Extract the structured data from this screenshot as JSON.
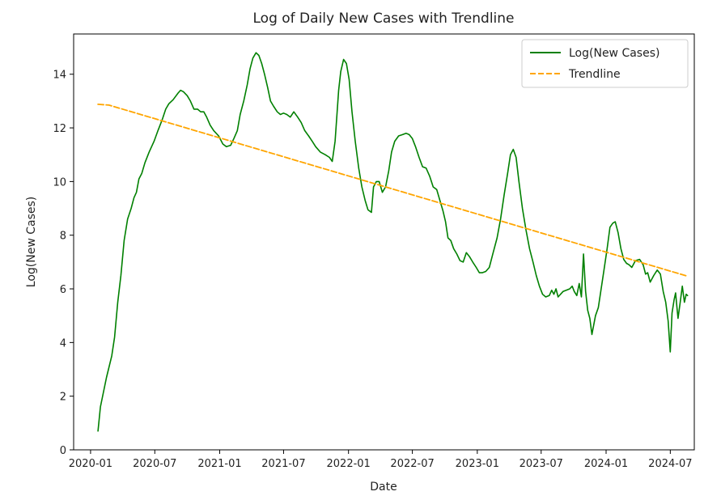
{
  "chart_data": {
    "type": "line",
    "title": "Log of Daily New Cases with Trendline",
    "xlabel": "Date",
    "ylabel": "Log(New Cases)",
    "xlim": [
      "2019-11-14",
      "2024-09-07"
    ],
    "ylim": [
      0,
      15.5
    ],
    "x_ticks": [
      "2020-01",
      "2020-07",
      "2021-01",
      "2021-07",
      "2022-01",
      "2022-07",
      "2023-01",
      "2023-07",
      "2024-01",
      "2024-07"
    ],
    "y_ticks": [
      0,
      2,
      4,
      6,
      8,
      10,
      12,
      14
    ],
    "grid": false,
    "legend": "upper right",
    "series": [
      {
        "name": "Log(New Cases)",
        "color": "#008000",
        "style": "solid",
        "points": [
          [
            "2020-01-22",
            0.7
          ],
          [
            "2020-01-29",
            1.6
          ],
          [
            "2020-02-15",
            2.7
          ],
          [
            "2020-03-01",
            3.5
          ],
          [
            "2020-03-09",
            4.2
          ],
          [
            "2020-03-18",
            5.5
          ],
          [
            "2020-03-27",
            6.5
          ],
          [
            "2020-04-05",
            7.8
          ],
          [
            "2020-04-15",
            8.6
          ],
          [
            "2020-04-25",
            9.0
          ],
          [
            "2020-05-03",
            9.4
          ],
          [
            "2020-05-10",
            9.6
          ],
          [
            "2020-05-17",
            10.1
          ],
          [
            "2020-05-25",
            10.3
          ],
          [
            "2020-06-03",
            10.7
          ],
          [
            "2020-06-15",
            11.1
          ],
          [
            "2020-06-29",
            11.5
          ],
          [
            "2020-07-10",
            11.9
          ],
          [
            "2020-07-22",
            12.3
          ],
          [
            "2020-08-01",
            12.7
          ],
          [
            "2020-08-10",
            12.9
          ],
          [
            "2020-08-22",
            13.05
          ],
          [
            "2020-09-05",
            13.3
          ],
          [
            "2020-09-12",
            13.4
          ],
          [
            "2020-09-20",
            13.35
          ],
          [
            "2020-10-01",
            13.2
          ],
          [
            "2020-10-10",
            13.0
          ],
          [
            "2020-10-20",
            12.7
          ],
          [
            "2020-10-30",
            12.7
          ],
          [
            "2020-11-08",
            12.6
          ],
          [
            "2020-11-17",
            12.6
          ],
          [
            "2020-11-25",
            12.4
          ],
          [
            "2020-12-05",
            12.1
          ],
          [
            "2020-12-15",
            11.9
          ],
          [
            "2020-12-29",
            11.7
          ],
          [
            "2021-01-10",
            11.4
          ],
          [
            "2021-01-20",
            11.3
          ],
          [
            "2021-02-01",
            11.35
          ],
          [
            "2021-02-10",
            11.6
          ],
          [
            "2021-02-20",
            11.9
          ],
          [
            "2021-02-28",
            12.5
          ],
          [
            "2021-03-10",
            13.0
          ],
          [
            "2021-03-20",
            13.6
          ],
          [
            "2021-03-28",
            14.2
          ],
          [
            "2021-04-05",
            14.6
          ],
          [
            "2021-04-14",
            14.8
          ],
          [
            "2021-04-22",
            14.7
          ],
          [
            "2021-04-30",
            14.4
          ],
          [
            "2021-05-08",
            14.0
          ],
          [
            "2021-05-17",
            13.5
          ],
          [
            "2021-05-25",
            13.0
          ],
          [
            "2021-06-03",
            12.8
          ],
          [
            "2021-06-13",
            12.6
          ],
          [
            "2021-06-22",
            12.5
          ],
          [
            "2021-07-01",
            12.55
          ],
          [
            "2021-07-10",
            12.5
          ],
          [
            "2021-07-20",
            12.4
          ],
          [
            "2021-07-30",
            12.6
          ],
          [
            "2021-08-10",
            12.4
          ],
          [
            "2021-08-20",
            12.2
          ],
          [
            "2021-08-30",
            11.9
          ],
          [
            "2021-09-10",
            11.7
          ],
          [
            "2021-09-20",
            11.5
          ],
          [
            "2021-09-30",
            11.3
          ],
          [
            "2021-10-13",
            11.1
          ],
          [
            "2021-10-27",
            11.0
          ],
          [
            "2021-11-08",
            10.9
          ],
          [
            "2021-11-16",
            10.75
          ],
          [
            "2021-11-24",
            11.5
          ],
          [
            "2021-12-04",
            13.4
          ],
          [
            "2021-12-10",
            14.1
          ],
          [
            "2021-12-18",
            14.55
          ],
          [
            "2021-12-26",
            14.4
          ],
          [
            "2022-01-03",
            13.8
          ],
          [
            "2022-01-11",
            12.6
          ],
          [
            "2022-01-20",
            11.5
          ],
          [
            "2022-01-30",
            10.5
          ],
          [
            "2022-02-08",
            9.8
          ],
          [
            "2022-02-17",
            9.3
          ],
          [
            "2022-02-25",
            8.95
          ],
          [
            "2022-03-07",
            8.85
          ],
          [
            "2022-03-13",
            9.8
          ],
          [
            "2022-03-21",
            10.0
          ],
          [
            "2022-03-29",
            10.0
          ],
          [
            "2022-04-07",
            9.6
          ],
          [
            "2022-04-16",
            9.8
          ],
          [
            "2022-04-25",
            10.4
          ],
          [
            "2022-05-03",
            11.1
          ],
          [
            "2022-05-12",
            11.5
          ],
          [
            "2022-05-23",
            11.7
          ],
          [
            "2022-06-03",
            11.75
          ],
          [
            "2022-06-13",
            11.8
          ],
          [
            "2022-06-22",
            11.75
          ],
          [
            "2022-07-01",
            11.6
          ],
          [
            "2022-07-10",
            11.3
          ],
          [
            "2022-07-20",
            10.9
          ],
          [
            "2022-07-30",
            10.55
          ],
          [
            "2022-08-09",
            10.5
          ],
          [
            "2022-08-19",
            10.2
          ],
          [
            "2022-08-29",
            9.8
          ],
          [
            "2022-09-08",
            9.7
          ],
          [
            "2022-09-17",
            9.3
          ],
          [
            "2022-09-26",
            8.9
          ],
          [
            "2022-10-03",
            8.5
          ],
          [
            "2022-10-10",
            7.9
          ],
          [
            "2022-10-18",
            7.8
          ],
          [
            "2022-10-26",
            7.5
          ],
          [
            "2022-11-04",
            7.3
          ],
          [
            "2022-11-13",
            7.05
          ],
          [
            "2022-11-22",
            7.0
          ],
          [
            "2022-12-01",
            7.35
          ],
          [
            "2022-12-10",
            7.2
          ],
          [
            "2022-12-19",
            7.0
          ],
          [
            "2022-12-29",
            6.8
          ],
          [
            "2023-01-07",
            6.6
          ],
          [
            "2023-01-15",
            6.6
          ],
          [
            "2023-01-25",
            6.65
          ],
          [
            "2023-02-04",
            6.8
          ],
          [
            "2023-02-14",
            7.3
          ],
          [
            "2023-02-26",
            7.9
          ],
          [
            "2023-03-08",
            8.6
          ],
          [
            "2023-03-18",
            9.5
          ],
          [
            "2023-03-28",
            10.3
          ],
          [
            "2023-04-05",
            11.0
          ],
          [
            "2023-04-13",
            11.2
          ],
          [
            "2023-04-21",
            10.9
          ],
          [
            "2023-04-29",
            10.0
          ],
          [
            "2023-05-09",
            9.0
          ],
          [
            "2023-05-19",
            8.2
          ],
          [
            "2023-05-29",
            7.5
          ],
          [
            "2023-06-08",
            7.0
          ],
          [
            "2023-06-17",
            6.5
          ],
          [
            "2023-06-26",
            6.1
          ],
          [
            "2023-07-05",
            5.8
          ],
          [
            "2023-07-14",
            5.7
          ],
          [
            "2023-07-24",
            5.75
          ],
          [
            "2023-07-31",
            5.95
          ],
          [
            "2023-08-06",
            5.8
          ],
          [
            "2023-08-12",
            6.0
          ],
          [
            "2023-08-18",
            5.7
          ],
          [
            "2023-08-25",
            5.8
          ],
          [
            "2023-09-01",
            5.9
          ],
          [
            "2023-09-10",
            5.95
          ],
          [
            "2023-09-20",
            6.0
          ],
          [
            "2023-09-27",
            6.1
          ],
          [
            "2023-10-03",
            5.9
          ],
          [
            "2023-10-10",
            5.75
          ],
          [
            "2023-10-17",
            6.2
          ],
          [
            "2023-10-23",
            5.7
          ],
          [
            "2023-10-29",
            7.3
          ],
          [
            "2023-11-04",
            5.9
          ],
          [
            "2023-11-10",
            5.2
          ],
          [
            "2023-11-16",
            4.9
          ],
          [
            "2023-11-22",
            4.3
          ],
          [
            "2023-12-02",
            5.0
          ],
          [
            "2023-12-10",
            5.3
          ],
          [
            "2023-12-18",
            6.0
          ],
          [
            "2023-12-26",
            6.7
          ],
          [
            "2024-01-04",
            7.5
          ],
          [
            "2024-01-12",
            8.3
          ],
          [
            "2024-01-20",
            8.45
          ],
          [
            "2024-01-27",
            8.5
          ],
          [
            "2024-02-04",
            8.1
          ],
          [
            "2024-02-12",
            7.5
          ],
          [
            "2024-02-20",
            7.1
          ],
          [
            "2024-02-28",
            6.95
          ],
          [
            "2024-03-06",
            6.9
          ],
          [
            "2024-03-14",
            6.8
          ],
          [
            "2024-03-24",
            7.05
          ],
          [
            "2024-04-05",
            7.1
          ],
          [
            "2024-04-15",
            6.9
          ],
          [
            "2024-04-22",
            6.55
          ],
          [
            "2024-04-28",
            6.6
          ],
          [
            "2024-05-05",
            6.25
          ],
          [
            "2024-05-15",
            6.5
          ],
          [
            "2024-05-25",
            6.7
          ],
          [
            "2024-06-03",
            6.55
          ],
          [
            "2024-06-11",
            5.9
          ],
          [
            "2024-06-18",
            5.5
          ],
          [
            "2024-06-25",
            4.8
          ],
          [
            "2024-07-01",
            3.65
          ],
          [
            "2024-07-06",
            5.1
          ],
          [
            "2024-07-12",
            5.6
          ],
          [
            "2024-07-16",
            5.85
          ],
          [
            "2024-07-20",
            5.3
          ],
          [
            "2024-07-23",
            4.9
          ],
          [
            "2024-07-29",
            5.5
          ],
          [
            "2024-08-04",
            6.1
          ],
          [
            "2024-08-10",
            5.5
          ],
          [
            "2024-08-15",
            5.8
          ],
          [
            "2024-08-19",
            5.75
          ]
        ]
      },
      {
        "name": "Trendline",
        "color": "#FFA500",
        "style": "dashed",
        "points": [
          [
            "2020-01-22",
            12.88
          ],
          [
            "2020-02-22",
            12.85
          ],
          [
            "2024-08-19",
            6.47
          ]
        ]
      }
    ]
  }
}
